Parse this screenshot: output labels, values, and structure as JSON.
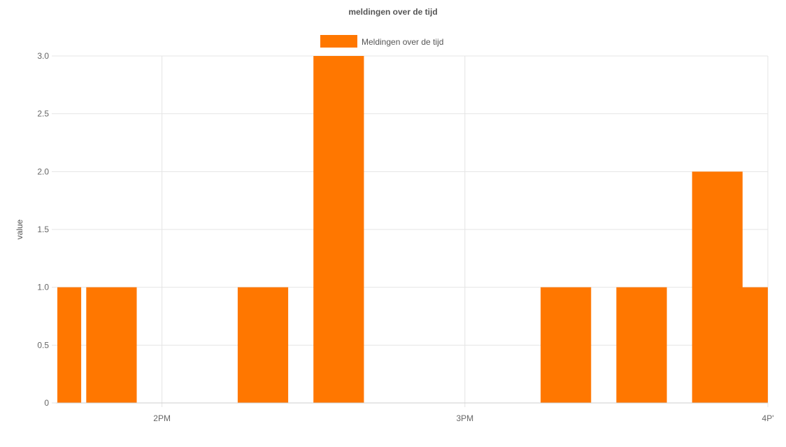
{
  "chart_data": {
    "type": "bar",
    "title": "meldingen over de tijd",
    "ylabel": "value",
    "xlabel": "",
    "ylim": [
      0,
      3.0
    ],
    "y_ticks": [
      "0",
      "0.5",
      "1.0",
      "1.5",
      "2.0",
      "2.5",
      "3.0"
    ],
    "x_range": [
      "13:39",
      "16:00"
    ],
    "x_ticks": [
      {
        "time": "14:00",
        "label": "2PM"
      },
      {
        "time": "15:00",
        "label": "3PM"
      },
      {
        "time": "16:00",
        "label": "4P'"
      }
    ],
    "bar_width_minutes": 10,
    "series": [
      {
        "name": "Meldingen over de tijd",
        "color": "#ff7700",
        "points": [
          {
            "x": "13:39",
            "y": 1
          },
          {
            "x": "13:50",
            "y": 1
          },
          {
            "x": "14:20",
            "y": 1
          },
          {
            "x": "14:35",
            "y": 3
          },
          {
            "x": "15:20",
            "y": 1
          },
          {
            "x": "15:35",
            "y": 1
          },
          {
            "x": "15:50",
            "y": 2
          },
          {
            "x": "15:59",
            "y": 1
          }
        ]
      }
    ],
    "grid": true,
    "legend_position": "top"
  }
}
